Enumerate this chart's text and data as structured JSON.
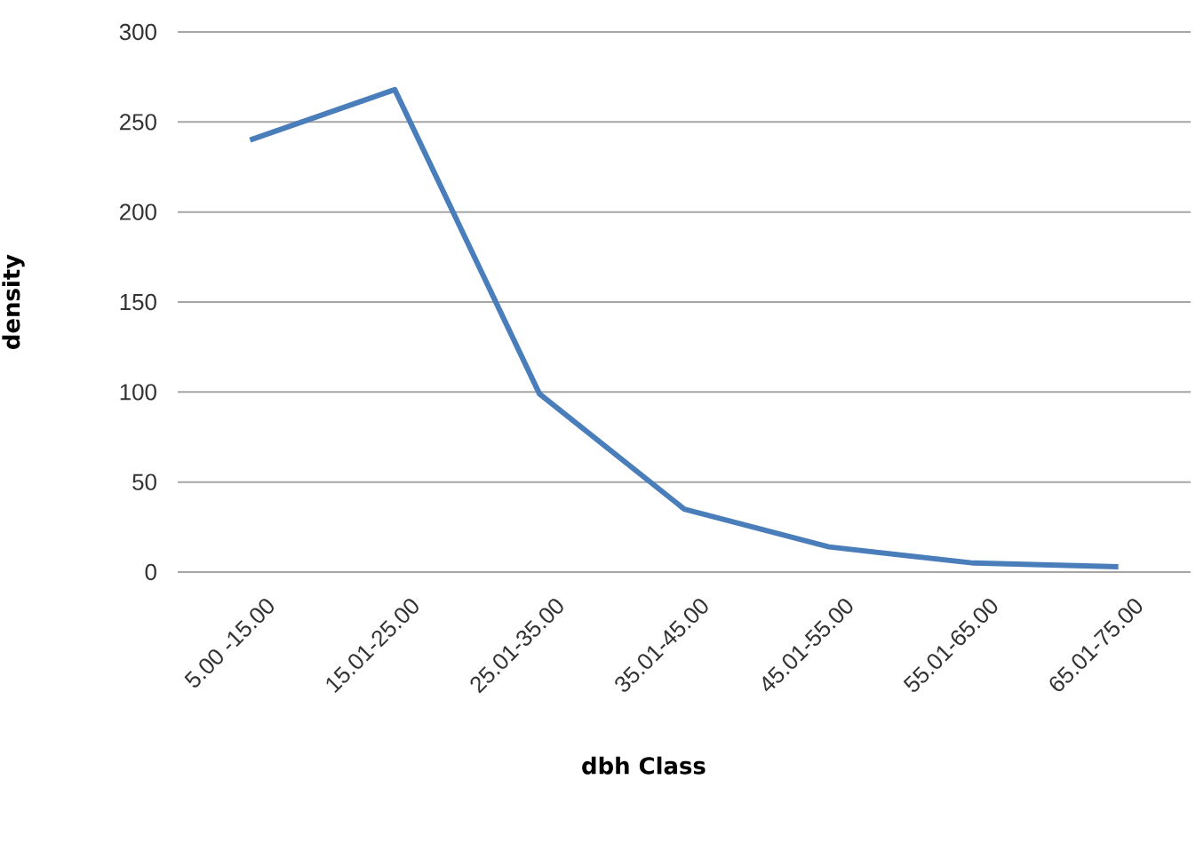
{
  "chart_data": {
    "type": "line",
    "xlabel": "dbh Class",
    "ylabel": "density",
    "categories": [
      "5.00 -15.00",
      "15.01-25.00",
      "25.01-35.00",
      "35.01-45.00",
      "45.01-55.00",
      "55.01-65.00",
      "65.01-75.00"
    ],
    "series": [
      {
        "color": "#4a7ebb",
        "values": [
          240,
          268,
          99,
          35,
          14,
          5,
          3
        ]
      }
    ],
    "ylim": [
      0,
      300
    ],
    "yticks": [
      0,
      50,
      100,
      150,
      200,
      250,
      300
    ],
    "grid": "y",
    "marker": "none",
    "line_style": "solid"
  }
}
